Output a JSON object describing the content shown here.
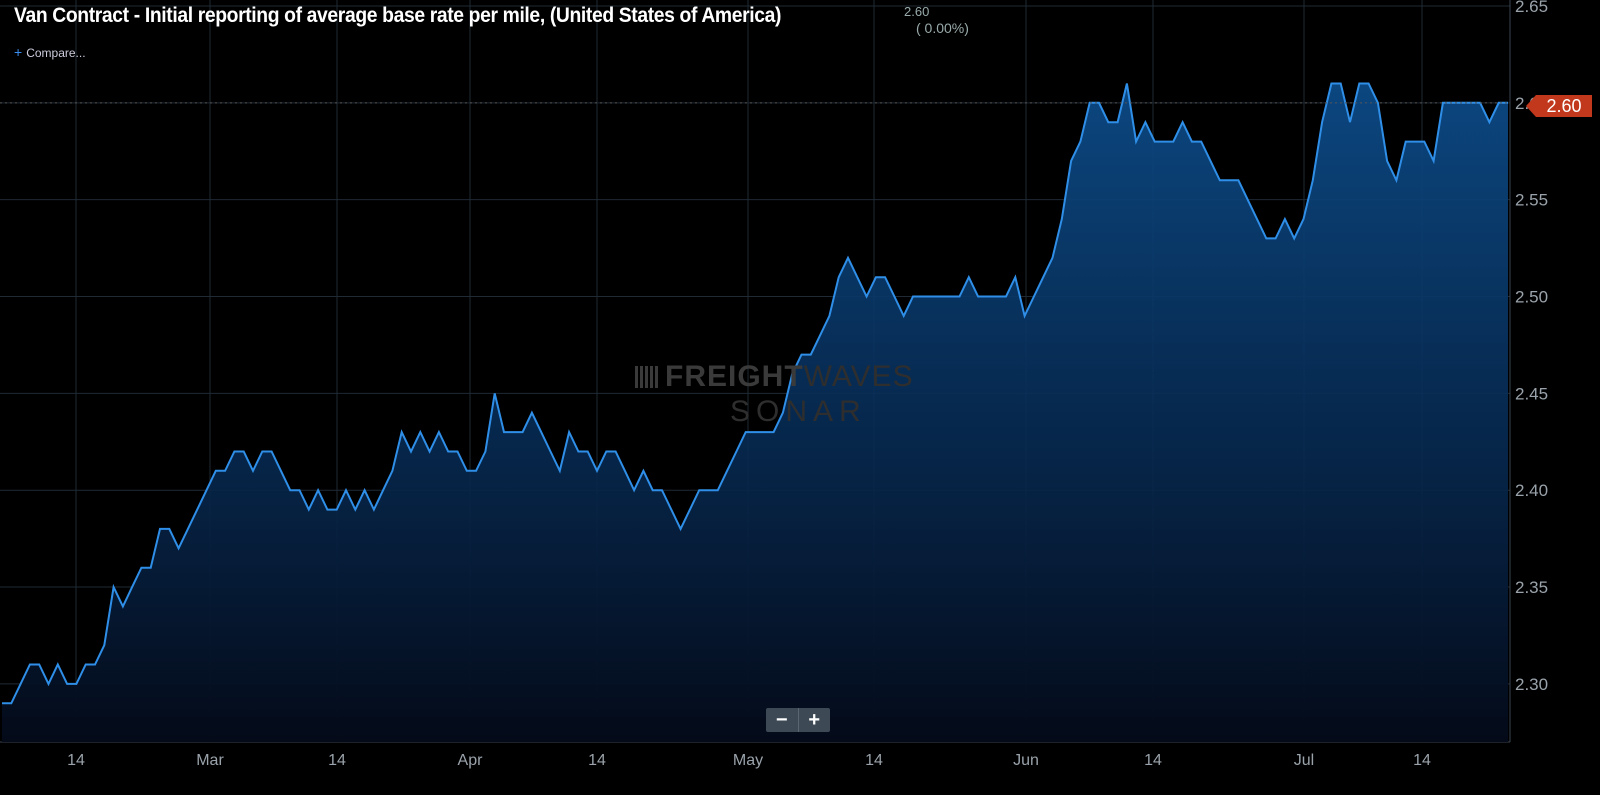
{
  "header": {
    "title": "Van Contract - Initial reporting of average base rate per mile, (United States of America)",
    "last_value": "2.60",
    "change": "( 0.00%)",
    "compare_label": "Compare..."
  },
  "watermark": {
    "line1_bold": "FREIGHT",
    "line1_thin": "WAVES",
    "line2": "SONAR"
  },
  "zoom": {
    "minus": "−",
    "plus": "+"
  },
  "last_price_tag": "2.60",
  "colors": {
    "line": "#2f8fe8",
    "area_top": "#0c4a86",
    "grid": "#2a3642",
    "tag": "#c1381c"
  },
  "chart_data": {
    "type": "area",
    "x_ticks": [
      "14",
      "Mar",
      "14",
      "Apr",
      "14",
      "May",
      "14",
      "Jun",
      "14",
      "Jul",
      "14"
    ],
    "y_ticks": [
      "2.30",
      "2.35",
      "2.40",
      "2.45",
      "2.50",
      "2.55",
      "2.60",
      "2.65"
    ],
    "ylim": [
      2.27,
      2.65
    ],
    "grid": true,
    "series": [
      {
        "values": [
          2.29,
          2.29,
          2.3,
          2.31,
          2.31,
          2.3,
          2.31,
          2.3,
          2.3,
          2.31,
          2.31,
          2.32,
          2.35,
          2.34,
          2.35,
          2.36,
          2.36,
          2.38,
          2.38,
          2.37,
          2.38,
          2.39,
          2.4,
          2.41,
          2.41,
          2.42,
          2.42,
          2.41,
          2.42,
          2.42,
          2.41,
          2.4,
          2.4,
          2.39,
          2.4,
          2.39,
          2.39,
          2.4,
          2.39,
          2.4,
          2.39,
          2.4,
          2.41,
          2.43,
          2.42,
          2.43,
          2.42,
          2.43,
          2.42,
          2.42,
          2.41,
          2.41,
          2.42,
          2.45,
          2.43,
          2.43,
          2.43,
          2.44,
          2.43,
          2.42,
          2.41,
          2.43,
          2.42,
          2.42,
          2.41,
          2.42,
          2.42,
          2.41,
          2.4,
          2.41,
          2.4,
          2.4,
          2.39,
          2.38,
          2.39,
          2.4,
          2.4,
          2.4,
          2.41,
          2.42,
          2.43,
          2.43,
          2.43,
          2.43,
          2.44,
          2.46,
          2.47,
          2.47,
          2.48,
          2.49,
          2.51,
          2.52,
          2.51,
          2.5,
          2.51,
          2.51,
          2.5,
          2.49,
          2.5,
          2.5,
          2.5,
          2.5,
          2.5,
          2.5,
          2.51,
          2.5,
          2.5,
          2.5,
          2.5,
          2.51,
          2.49,
          2.5,
          2.51,
          2.52,
          2.54,
          2.57,
          2.58,
          2.6,
          2.6,
          2.59,
          2.59,
          2.61,
          2.58,
          2.59,
          2.58,
          2.58,
          2.58,
          2.59,
          2.58,
          2.58,
          2.57,
          2.56,
          2.56,
          2.56,
          2.55,
          2.54,
          2.53,
          2.53,
          2.54,
          2.53,
          2.54,
          2.56,
          2.59,
          2.61,
          2.61,
          2.59,
          2.61,
          2.61,
          2.6,
          2.57,
          2.56,
          2.58,
          2.58,
          2.58,
          2.57,
          2.6,
          2.6,
          2.6,
          2.6,
          2.6,
          2.59,
          2.6,
          2.6
        ]
      }
    ]
  }
}
